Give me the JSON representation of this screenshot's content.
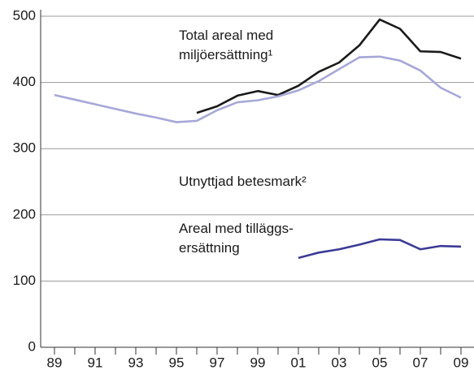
{
  "chart_data": {
    "type": "line",
    "categories": [
      "89",
      null,
      "91",
      null,
      "93",
      null,
      "95",
      null,
      "97",
      null,
      "99",
      null,
      "01",
      null,
      "03",
      null,
      "05",
      null,
      "07",
      null,
      "09"
    ],
    "series": [
      {
        "name": "Total areal med miljöersättning¹",
        "color": "#1a1a1a",
        "values": [
          null,
          null,
          null,
          null,
          null,
          null,
          null,
          354,
          364,
          380,
          387,
          381,
          395,
          416,
          430,
          456,
          495,
          481,
          447,
          446,
          436
        ]
      },
      {
        "name": "Utnyttjad betesmark²",
        "color": "#a6a8d8",
        "values": [
          381,
          374,
          367,
          360,
          353,
          347,
          340,
          342,
          358,
          370,
          373,
          379,
          388,
          402,
          420,
          438,
          439,
          433,
          418,
          392,
          377
        ]
      },
      {
        "name": "Areal med tilläggs-ersättning",
        "color": "#3b3b96",
        "values": [
          null,
          null,
          null,
          null,
          null,
          null,
          null,
          null,
          null,
          null,
          null,
          null,
          135,
          143,
          148,
          155,
          163,
          162,
          148,
          153,
          152
        ]
      }
    ],
    "ylim": [
      0,
      500
    ],
    "yticks": [
      0,
      100,
      200,
      300,
      400,
      500
    ],
    "grid": true
  }
}
